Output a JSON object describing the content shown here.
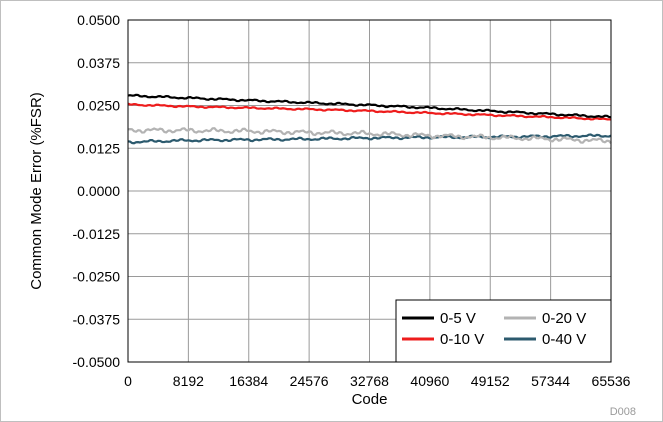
{
  "chart_data": {
    "type": "line",
    "title": "",
    "xlabel": "Code",
    "ylabel": "Common Mode Error (%FSR)",
    "xlim": [
      0,
      65536
    ],
    "ylim": [
      -0.05,
      0.05
    ],
    "x_ticks": [
      "0",
      "8192",
      "16384",
      "24576",
      "32768",
      "40960",
      "49152",
      "57344",
      "65536"
    ],
    "x_tick_values": [
      0,
      8192,
      16384,
      24576,
      32768,
      40960,
      49152,
      57344,
      65536
    ],
    "y_ticks": [
      "0.0500",
      "0.0375",
      "0.0250",
      "0.0125",
      "0.0000",
      "-0.0125",
      "-0.0250",
      "-0.0375",
      "-0.0500"
    ],
    "y_tick_values": [
      0.05,
      0.0375,
      0.025,
      0.0125,
      0.0,
      -0.0125,
      -0.025,
      -0.0375,
      -0.05
    ],
    "grid": true,
    "legend_position": "bottom-right",
    "figure_id": "D008",
    "x": [
      0,
      8192,
      16384,
      24576,
      32768,
      40960,
      49152,
      57344,
      65536
    ],
    "series": [
      {
        "name": "0-5 V",
        "color": "#000000",
        "values": [
          0.0279,
          0.0272,
          0.0265,
          0.0258,
          0.0251,
          0.0243,
          0.0234,
          0.0225,
          0.0216
        ]
      },
      {
        "name": "0-10 V",
        "color": "#ee1c1c",
        "values": [
          0.0253,
          0.0247,
          0.0243,
          0.0239,
          0.0234,
          0.0228,
          0.0222,
          0.0216,
          0.0209
        ]
      },
      {
        "name": "0-20 V",
        "color": "#b3b3b3",
        "values": [
          0.0178,
          0.0177,
          0.0175,
          0.0171,
          0.0168,
          0.0162,
          0.0157,
          0.0152,
          0.0146
        ]
      },
      {
        "name": "0-40 V",
        "color": "#2c5a6e",
        "values": [
          0.0143,
          0.0148,
          0.015,
          0.0152,
          0.0155,
          0.0157,
          0.0158,
          0.016,
          0.0162
        ]
      }
    ]
  }
}
